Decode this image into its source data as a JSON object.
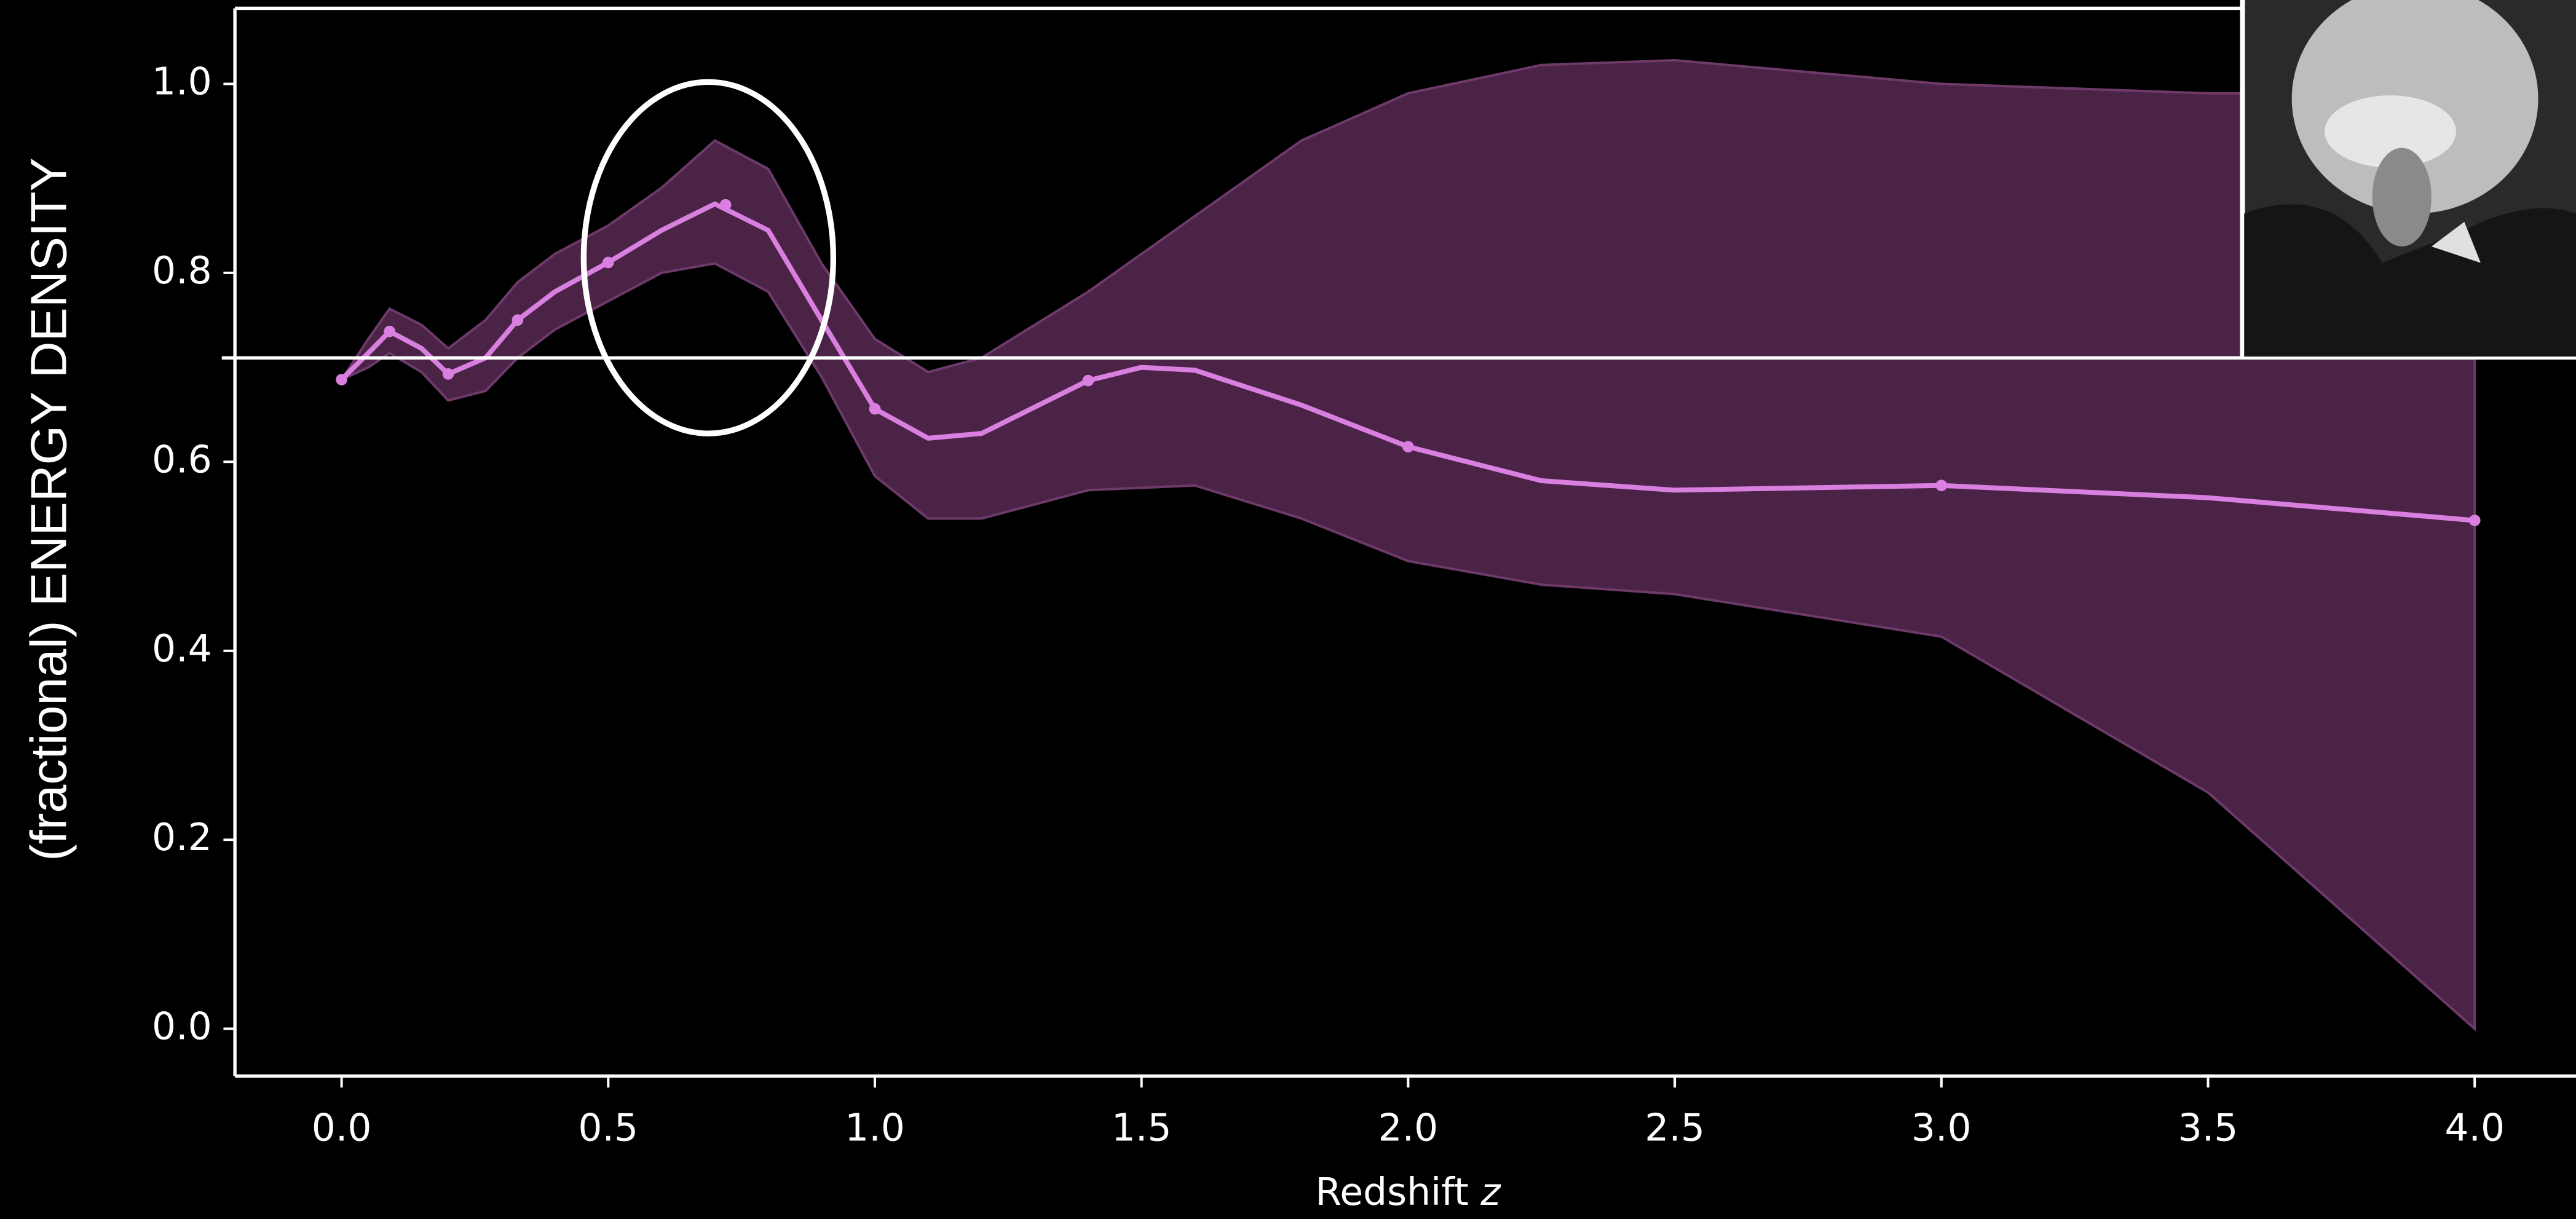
{
  "chart_data": {
    "type": "line",
    "xlabel": "Redshift",
    "xlabel_var": "z",
    "ylabel": "(fractional) ENERGY DENSITY",
    "xlim": [
      -0.2,
      4.19
    ],
    "ylim": [
      -0.05,
      1.08
    ],
    "xticks": [
      {
        "value": 0,
        "label": "0.0"
      },
      {
        "value": 0.5,
        "label": "0.5"
      },
      {
        "value": 1,
        "label": "1.0"
      },
      {
        "value": 1.5,
        "label": "1.5"
      },
      {
        "value": 2,
        "label": "2.0"
      },
      {
        "value": 2.5,
        "label": "2.5"
      },
      {
        "value": 3,
        "label": "3.0"
      },
      {
        "value": 3.5,
        "label": "3.5"
      },
      {
        "value": 4,
        "label": "4.0"
      }
    ],
    "yticks": [
      {
        "value": 0,
        "label": "0.0"
      },
      {
        "value": 0.2,
        "label": "0.2"
      },
      {
        "value": 0.4,
        "label": "0.4"
      },
      {
        "value": 0.6,
        "label": "0.6"
      },
      {
        "value": 0.8,
        "label": "0.8"
      },
      {
        "value": 1,
        "label": "1.0"
      }
    ],
    "band": {
      "color": "#4a2347",
      "x": [
        0,
        0.05,
        0.09,
        0.15,
        0.2,
        0.27,
        0.33,
        0.4,
        0.5,
        0.6,
        0.7,
        0.8,
        0.9,
        1.0,
        1.1,
        1.2,
        1.4,
        1.6,
        1.8,
        2.0,
        2.25,
        2.5,
        3.0,
        3.5,
        4.0
      ],
      "upper": [
        0.687,
        0.73,
        0.762,
        0.745,
        0.72,
        0.75,
        0.79,
        0.82,
        0.85,
        0.89,
        0.94,
        0.91,
        0.81,
        0.73,
        0.695,
        0.71,
        0.78,
        0.86,
        0.94,
        0.99,
        1.02,
        1.025,
        1.0,
        0.99,
        0.99
      ],
      "lower": [
        0.687,
        0.7,
        0.715,
        0.695,
        0.665,
        0.675,
        0.71,
        0.74,
        0.77,
        0.8,
        0.81,
        0.78,
        0.69,
        0.585,
        0.54,
        0.54,
        0.57,
        0.575,
        0.54,
        0.495,
        0.47,
        0.46,
        0.415,
        0.25,
        0.0
      ]
    },
    "line": {
      "color": "#d97fe0",
      "x": [
        0,
        0.05,
        0.09,
        0.15,
        0.2,
        0.27,
        0.33,
        0.4,
        0.5,
        0.6,
        0.7,
        0.8,
        0.9,
        1.0,
        1.1,
        1.2,
        1.4,
        1.5,
        1.6,
        1.8,
        2.0,
        2.25,
        2.5,
        3.0,
        3.5,
        4.0
      ],
      "values": [
        0.687,
        0.715,
        0.738,
        0.72,
        0.693,
        0.71,
        0.75,
        0.78,
        0.811,
        0.845,
        0.873,
        0.845,
        0.75,
        0.656,
        0.625,
        0.63,
        0.686,
        0.7,
        0.697,
        0.66,
        0.616,
        0.58,
        0.57,
        0.575,
        0.562,
        0.538
      ]
    },
    "points": {
      "color": "#d97fe0",
      "x": [
        0,
        0.09,
        0.2,
        0.33,
        0.5,
        0.72,
        1.0,
        1.4,
        2.0,
        3.0,
        4.0
      ],
      "values": [
        0.687,
        0.738,
        0.693,
        0.75,
        0.811,
        0.872,
        0.656,
        0.686,
        0.616,
        0.575,
        0.538
      ]
    },
    "hline": 0.71,
    "highlight_ellipse": {
      "x": 0.688,
      "y": 0.816,
      "rx": 0.234,
      "ry": 0.186
    }
  }
}
